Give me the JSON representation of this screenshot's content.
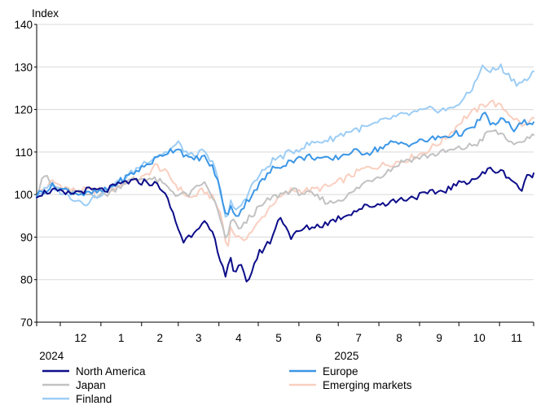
{
  "chart_data": {
    "type": "line",
    "ylabel": "Index",
    "ylim": [
      70,
      140
    ],
    "yticks": [
      70,
      80,
      90,
      100,
      110,
      120,
      130,
      140
    ],
    "grid": true,
    "legend_position": "bottom",
    "x_start": "2024-11-13",
    "x_end": "2025-11-27",
    "x_month_labels": [
      {
        "label": "12",
        "month": "2024-12"
      },
      {
        "label": "1",
        "month": "2025-01"
      },
      {
        "label": "2",
        "month": "2025-02"
      },
      {
        "label": "3",
        "month": "2025-03"
      },
      {
        "label": "4",
        "month": "2025-04"
      },
      {
        "label": "5",
        "month": "2025-05"
      },
      {
        "label": "6",
        "month": "2025-06"
      },
      {
        "label": "7",
        "month": "2025-07"
      },
      {
        "label": "8",
        "month": "2025-08"
      },
      {
        "label": "9",
        "month": "2025-09"
      },
      {
        "label": "10",
        "month": "2025-10"
      },
      {
        "label": "11",
        "month": "2025-11"
      }
    ],
    "year_labels": [
      {
        "label": "2024",
        "date": "2024-11-15"
      },
      {
        "label": "2025",
        "date": "2025-06-28"
      }
    ],
    "series": [
      {
        "name": "Emerging markets",
        "color": "#f9cfc0",
        "points": [
          [
            "2024-11-13",
            100
          ],
          [
            "2024-11-25",
            103
          ],
          [
            "2024-12-10",
            101
          ],
          [
            "2024-12-25",
            101
          ],
          [
            "2025-01-08",
            101
          ],
          [
            "2025-01-20",
            103
          ],
          [
            "2025-02-03",
            104
          ],
          [
            "2025-02-12",
            107
          ],
          [
            "2025-02-20",
            105
          ],
          [
            "2025-02-28",
            102
          ],
          [
            "2025-03-10",
            99
          ],
          [
            "2025-03-20",
            101
          ],
          [
            "2025-03-28",
            99
          ],
          [
            "2025-04-03",
            95
          ],
          [
            "2025-04-07",
            87
          ],
          [
            "2025-04-10",
            92
          ],
          [
            "2025-04-18",
            89
          ],
          [
            "2025-04-28",
            92
          ],
          [
            "2025-05-12",
            98
          ],
          [
            "2025-05-26",
            101
          ],
          [
            "2025-06-10",
            101
          ],
          [
            "2025-06-25",
            102
          ],
          [
            "2025-07-08",
            104
          ],
          [
            "2025-07-20",
            106
          ],
          [
            "2025-08-05",
            107
          ],
          [
            "2025-08-20",
            108
          ],
          [
            "2025-09-05",
            110
          ],
          [
            "2025-09-20",
            113
          ],
          [
            "2025-10-05",
            118
          ],
          [
            "2025-10-15",
            120
          ],
          [
            "2025-10-25",
            122
          ],
          [
            "2025-11-05",
            120
          ],
          [
            "2025-11-12",
            118
          ],
          [
            "2025-11-20",
            116
          ],
          [
            "2025-11-27",
            118
          ]
        ]
      },
      {
        "name": "Japan",
        "color": "#c2c2c2",
        "points": [
          [
            "2024-11-13",
            100
          ],
          [
            "2024-11-18",
            105
          ],
          [
            "2024-11-25",
            102
          ],
          [
            "2024-12-05",
            101
          ],
          [
            "2024-12-20",
            100
          ],
          [
            "2025-01-05",
            100
          ],
          [
            "2025-01-20",
            103
          ],
          [
            "2025-02-05",
            104
          ],
          [
            "2025-02-15",
            103
          ],
          [
            "2025-02-28",
            100
          ],
          [
            "2025-03-10",
            100
          ],
          [
            "2025-03-20",
            103
          ],
          [
            "2025-03-28",
            99
          ],
          [
            "2025-04-04",
            92
          ],
          [
            "2025-04-07",
            88
          ],
          [
            "2025-04-10",
            94
          ],
          [
            "2025-04-18",
            92
          ],
          [
            "2025-04-25",
            95
          ],
          [
            "2025-05-10",
            99
          ],
          [
            "2025-05-25",
            101
          ],
          [
            "2025-06-10",
            100
          ],
          [
            "2025-06-25",
            98
          ],
          [
            "2025-07-10",
            100
          ],
          [
            "2025-07-22",
            103
          ],
          [
            "2025-08-05",
            105
          ],
          [
            "2025-08-20",
            108
          ],
          [
            "2025-09-05",
            109
          ],
          [
            "2025-09-20",
            110
          ],
          [
            "2025-10-05",
            111
          ],
          [
            "2025-10-15",
            112
          ],
          [
            "2025-10-25",
            115
          ],
          [
            "2025-11-05",
            114
          ],
          [
            "2025-11-12",
            111
          ],
          [
            "2025-11-20",
            113
          ],
          [
            "2025-11-27",
            114
          ]
        ]
      },
      {
        "name": "Finland",
        "color": "#9dcdf5",
        "points": [
          [
            "2024-11-13",
            100
          ],
          [
            "2024-11-25",
            102
          ],
          [
            "2024-12-05",
            100
          ],
          [
            "2024-12-20",
            98
          ],
          [
            "2025-01-05",
            101
          ],
          [
            "2025-01-20",
            104
          ],
          [
            "2025-02-05",
            108
          ],
          [
            "2025-02-20",
            110
          ],
          [
            "2025-03-01",
            112
          ],
          [
            "2025-03-10",
            109
          ],
          [
            "2025-03-20",
            110
          ],
          [
            "2025-03-28",
            107
          ],
          [
            "2025-04-03",
            100
          ],
          [
            "2025-04-07",
            93
          ],
          [
            "2025-04-10",
            98
          ],
          [
            "2025-04-15",
            96
          ],
          [
            "2025-04-28",
            103
          ],
          [
            "2025-05-12",
            108
          ],
          [
            "2025-05-26",
            110
          ],
          [
            "2025-06-10",
            112
          ],
          [
            "2025-06-25",
            113
          ],
          [
            "2025-07-10",
            115
          ],
          [
            "2025-07-25",
            116
          ],
          [
            "2025-08-10",
            118
          ],
          [
            "2025-08-25",
            119
          ],
          [
            "2025-09-10",
            120
          ],
          [
            "2025-09-25",
            120
          ],
          [
            "2025-10-10",
            124
          ],
          [
            "2025-10-18",
            130
          ],
          [
            "2025-10-25",
            129
          ],
          [
            "2025-11-02",
            130
          ],
          [
            "2025-11-08",
            128
          ],
          [
            "2025-11-15",
            126
          ],
          [
            "2025-11-22",
            127
          ],
          [
            "2025-11-27",
            129
          ]
        ]
      },
      {
        "name": "Europe",
        "color": "#3b96e6",
        "points": [
          [
            "2024-11-13",
            100
          ],
          [
            "2024-11-25",
            102
          ],
          [
            "2024-12-05",
            101
          ],
          [
            "2024-12-20",
            100
          ],
          [
            "2025-01-05",
            101
          ],
          [
            "2025-01-20",
            104
          ],
          [
            "2025-02-05",
            107
          ],
          [
            "2025-02-20",
            110
          ],
          [
            "2025-03-01",
            111
          ],
          [
            "2025-03-10",
            108
          ],
          [
            "2025-03-20",
            109
          ],
          [
            "2025-03-28",
            106
          ],
          [
            "2025-04-03",
            100
          ],
          [
            "2025-04-07",
            94
          ],
          [
            "2025-04-10",
            97
          ],
          [
            "2025-04-15",
            95
          ],
          [
            "2025-04-28",
            101
          ],
          [
            "2025-05-12",
            106
          ],
          [
            "2025-05-26",
            108
          ],
          [
            "2025-06-10",
            109
          ],
          [
            "2025-06-25",
            108
          ],
          [
            "2025-07-10",
            110
          ],
          [
            "2025-07-25",
            110
          ],
          [
            "2025-08-10",
            112
          ],
          [
            "2025-08-25",
            112
          ],
          [
            "2025-09-10",
            113
          ],
          [
            "2025-09-25",
            114
          ],
          [
            "2025-10-10",
            115
          ],
          [
            "2025-10-20",
            119
          ],
          [
            "2025-10-28",
            116
          ],
          [
            "2025-11-05",
            118
          ],
          [
            "2025-11-12",
            115
          ],
          [
            "2025-11-20",
            117
          ],
          [
            "2025-11-27",
            117
          ]
        ]
      },
      {
        "name": "North America",
        "color": "#0d0d8a",
        "points": [
          [
            "2024-11-13",
            100
          ],
          [
            "2024-11-25",
            101
          ],
          [
            "2024-12-05",
            100
          ],
          [
            "2024-12-20",
            101
          ],
          [
            "2025-01-05",
            101
          ],
          [
            "2025-01-20",
            103
          ],
          [
            "2025-02-05",
            103
          ],
          [
            "2025-02-15",
            102
          ],
          [
            "2025-02-22",
            98
          ],
          [
            "2025-03-01",
            92
          ],
          [
            "2025-03-05",
            89
          ],
          [
            "2025-03-12",
            91
          ],
          [
            "2025-03-20",
            94
          ],
          [
            "2025-03-28",
            90
          ],
          [
            "2025-04-03",
            83
          ],
          [
            "2025-04-07",
            81
          ],
          [
            "2025-04-09",
            87
          ],
          [
            "2025-04-12",
            82
          ],
          [
            "2025-04-18",
            83
          ],
          [
            "2025-04-22",
            79
          ],
          [
            "2025-05-01",
            86
          ],
          [
            "2025-05-10",
            89
          ],
          [
            "2025-05-18",
            95
          ],
          [
            "2025-05-26",
            90
          ],
          [
            "2025-06-05",
            92
          ],
          [
            "2025-06-20",
            93
          ],
          [
            "2025-07-05",
            95
          ],
          [
            "2025-07-20",
            97
          ],
          [
            "2025-08-05",
            98
          ],
          [
            "2025-08-20",
            99
          ],
          [
            "2025-09-05",
            100
          ],
          [
            "2025-09-20",
            101
          ],
          [
            "2025-10-05",
            103
          ],
          [
            "2025-10-15",
            104
          ],
          [
            "2025-10-25",
            106
          ],
          [
            "2025-11-05",
            105
          ],
          [
            "2025-11-12",
            103
          ],
          [
            "2025-11-18",
            101
          ],
          [
            "2025-11-22",
            104
          ],
          [
            "2025-11-27",
            105
          ]
        ]
      }
    ],
    "legend": [
      {
        "name": "North America",
        "color": "#0d0d8a"
      },
      {
        "name": "Europe",
        "color": "#3b96e6"
      },
      {
        "name": "Japan",
        "color": "#c2c2c2"
      },
      {
        "name": "Emerging markets",
        "color": "#f9cfc0"
      },
      {
        "name": "Finland",
        "color": "#9dcdf5"
      }
    ]
  }
}
